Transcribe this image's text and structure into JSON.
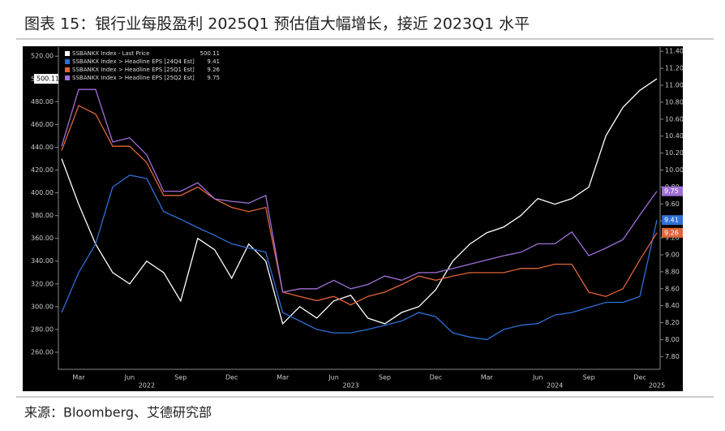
{
  "chart_data": {
    "type": "line",
    "title": "图表 15：银行业每股盈利 2025Q1 预估值大幅增长，接近 2023Q1 水平",
    "source": "来源：Bloomberg、艾德研究部",
    "categories": [
      null,
      "Mar",
      null,
      null,
      "Jun",
      null,
      null,
      "Sep",
      null,
      null,
      "Dec",
      null,
      null,
      "Mar",
      null,
      null,
      "Jun",
      null,
      null,
      "Sep",
      null,
      null,
      "Dec",
      null,
      null,
      "Mar",
      null,
      null,
      "Jun",
      null,
      null,
      "Sep",
      null,
      null,
      "Dec",
      null
    ],
    "year_labels": [
      null,
      null,
      null,
      null,
      null,
      "2022",
      null,
      null,
      null,
      null,
      null,
      null,
      null,
      null,
      null,
      null,
      null,
      "2023",
      null,
      null,
      null,
      null,
      null,
      null,
      null,
      null,
      null,
      null,
      null,
      "2024",
      null,
      null,
      null,
      null,
      null,
      "2025"
    ],
    "series": [
      {
        "name": "SSBANKX Index - Last Price",
        "color": "#ffffff",
        "axis": "y",
        "values": [
          430,
          390,
          355,
          330,
          320,
          340,
          330,
          305,
          360,
          350,
          325,
          355,
          340,
          285,
          300,
          290,
          305,
          310,
          290,
          285,
          295,
          300,
          315,
          340,
          355,
          365,
          370,
          380,
          395,
          390,
          395,
          405,
          450,
          475,
          490,
          500.11
        ]
      },
      {
        "name": "SSBANKX Index > Headline EPS [24Q4 Est]",
        "color": "#2f6fd6",
        "axis": "y2",
        "values": [
          8.32,
          8.79,
          9.13,
          9.8,
          9.94,
          9.9,
          9.51,
          9.42,
          9.32,
          9.23,
          9.13,
          9.08,
          9.03,
          8.32,
          8.22,
          8.12,
          8.08,
          8.08,
          8.12,
          8.17,
          8.22,
          8.32,
          8.27,
          8.08,
          8.03,
          8.0,
          8.12,
          8.17,
          8.19,
          8.29,
          8.32,
          8.38,
          8.44,
          8.44,
          8.51,
          9.41
        ]
      },
      {
        "name": "SSBANKX Index > Headline EPS [25Q1 Est]",
        "color": "#e0643a",
        "axis": "y2",
        "values": [
          10.23,
          10.76,
          10.66,
          10.28,
          10.28,
          10.09,
          9.7,
          9.7,
          9.8,
          9.66,
          9.56,
          9.51,
          9.56,
          8.56,
          8.51,
          8.46,
          8.51,
          8.41,
          8.51,
          8.56,
          8.65,
          8.75,
          8.7,
          8.75,
          8.79,
          8.79,
          8.79,
          8.84,
          8.84,
          8.89,
          8.89,
          8.56,
          8.51,
          8.6,
          8.94,
          9.26
        ]
      },
      {
        "name": "SSBANKX Index > Headline EPS [25Q2 Est]",
        "color": "#a070d8",
        "axis": "y2",
        "values": [
          10.28,
          10.95,
          10.95,
          10.33,
          10.38,
          10.18,
          9.75,
          9.75,
          9.85,
          9.66,
          9.63,
          9.61,
          9.7,
          8.56,
          8.6,
          8.6,
          8.7,
          8.6,
          8.65,
          8.75,
          8.7,
          8.79,
          8.79,
          8.84,
          8.89,
          8.94,
          8.99,
          9.03,
          9.13,
          9.13,
          9.27,
          8.99,
          9.08,
          9.18,
          9.47,
          9.75
        ]
      }
    ],
    "ylim": [
      245,
      528
    ],
    "yticks": [
      {
        "value": 260,
        "label": "260.00"
      },
      {
        "value": 280,
        "label": "280.00"
      },
      {
        "value": 300,
        "label": "300.00"
      },
      {
        "value": 320,
        "label": "320.00"
      },
      {
        "value": 340,
        "label": "340.00"
      },
      {
        "value": 360,
        "label": "360.00"
      },
      {
        "value": 380,
        "label": "380.00"
      },
      {
        "value": 400,
        "label": "400.00"
      },
      {
        "value": 420,
        "label": "420.00"
      },
      {
        "value": 440,
        "label": "440.00"
      },
      {
        "value": 460,
        "label": "460.00"
      },
      {
        "value": 480,
        "label": "480.00"
      },
      {
        "value": 500,
        "label": "500.00"
      },
      {
        "value": 520,
        "label": "520.00"
      }
    ],
    "y2lim": [
      7.65,
      11.45
    ],
    "y2ticks": [
      {
        "value": 7.8,
        "label": "7.80"
      },
      {
        "value": 8,
        "label": "8.00"
      },
      {
        "value": 8.2,
        "label": "8.20"
      },
      {
        "value": 8.4,
        "label": "8.40"
      },
      {
        "value": 8.6,
        "label": "8.60"
      },
      {
        "value": 8.8,
        "label": "8.80"
      },
      {
        "value": 9,
        "label": "9.00"
      },
      {
        "value": 9.2,
        "label": "9.20"
      },
      {
        "value": 9.4,
        "label": "9.40"
      },
      {
        "value": 9.6,
        "label": "9.60"
      },
      {
        "value": 9.8,
        "label": "9.80"
      },
      {
        "value": 10,
        "label": "10.00"
      },
      {
        "value": 10.2,
        "label": "10.20"
      },
      {
        "value": 10.4,
        "label": "10.40"
      },
      {
        "value": 10.6,
        "label": "10.60"
      },
      {
        "value": 10.8,
        "label": "10.80"
      },
      {
        "value": 11,
        "label": "11.00"
      },
      {
        "value": 11.2,
        "label": "11.20"
      },
      {
        "value": 11.4,
        "label": "11.40"
      }
    ]
  }
}
